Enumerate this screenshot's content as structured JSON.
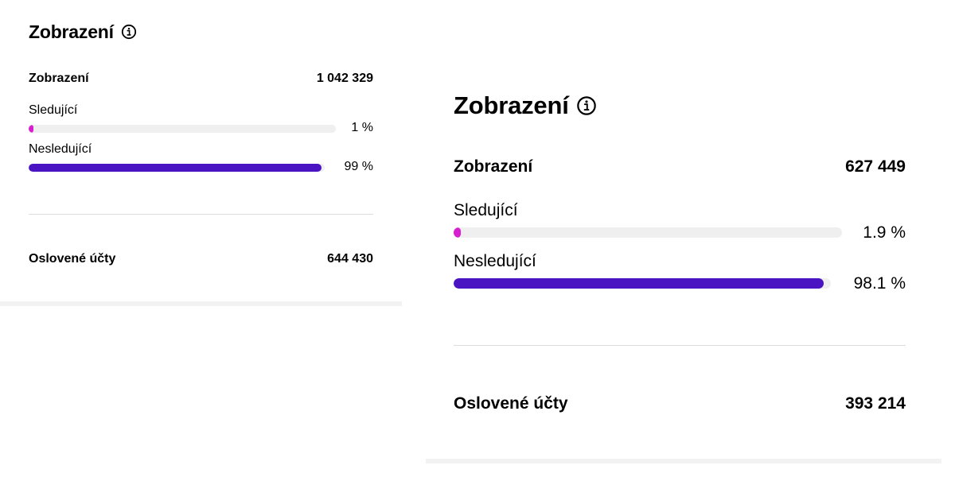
{
  "colors": {
    "follower_bar": "#d81fcf",
    "non_follower_bar": "#4b14c3",
    "track": "#efefef"
  },
  "icons": {
    "title_info": "info-circle-icon"
  },
  "cards": [
    {
      "title": "Zobrazení",
      "impressions_label": "Zobrazení",
      "impressions_value": "1 042 329",
      "followers_label": "Sledující",
      "followers_pct_text": "1 %",
      "followers_fraction": 0.01,
      "non_followers_label": "Nesledující",
      "non_followers_pct_text": "99 %",
      "non_followers_fraction": 0.99,
      "reach_label": "Oslovené účty",
      "reach_value": "644 430"
    },
    {
      "title": "Zobrazení",
      "impressions_label": "Zobrazení",
      "impressions_value": "627 449",
      "followers_label": "Sledující",
      "followers_pct_text": "1.9 %",
      "followers_fraction": 0.019,
      "non_followers_label": "Nesledující",
      "non_followers_pct_text": "98.1 %",
      "non_followers_fraction": 0.981,
      "reach_label": "Oslovené účty",
      "reach_value": "393 214"
    }
  ]
}
